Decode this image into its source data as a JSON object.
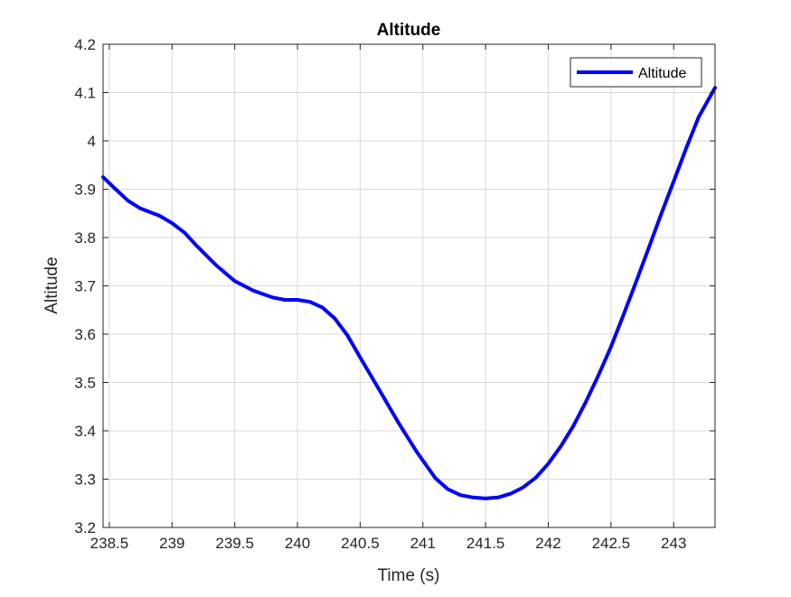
{
  "chart_data": {
    "type": "line",
    "title": "Altitude",
    "xlabel": "Time (s)",
    "ylabel": "Altitude",
    "xlim": [
      238.45,
      243.33
    ],
    "ylim": [
      3.2,
      4.2
    ],
    "xticks": [
      238.5,
      239,
      239.5,
      240,
      240.5,
      241,
      241.5,
      242,
      242.5,
      243
    ],
    "xtick_labels": [
      "238.5",
      "239",
      "239.5",
      "240",
      "240.5",
      "241",
      "241.5",
      "242",
      "242.5",
      "243"
    ],
    "yticks": [
      3.2,
      3.3,
      3.4,
      3.5,
      3.6,
      3.7,
      3.8,
      3.9,
      4.0,
      4.1,
      4.2
    ],
    "ytick_labels": [
      "3.2",
      "3.3",
      "3.4",
      "3.5",
      "3.6",
      "3.7",
      "3.8",
      "3.9",
      "4",
      "4.1",
      "4.2"
    ],
    "grid": true,
    "legend_position": "top-right",
    "series": [
      {
        "name": "Altitude",
        "color": "#0000ff",
        "x": [
          238.45,
          238.55,
          238.65,
          238.75,
          238.9,
          239.0,
          239.1,
          239.2,
          239.35,
          239.5,
          239.65,
          239.8,
          239.9,
          240.0,
          240.1,
          240.2,
          240.3,
          240.4,
          240.5,
          240.65,
          240.8,
          240.95,
          241.1,
          241.2,
          241.3,
          241.4,
          241.5,
          241.6,
          241.7,
          241.8,
          241.9,
          242.0,
          242.1,
          242.2,
          242.3,
          242.4,
          242.5,
          242.6,
          242.7,
          242.8,
          242.9,
          243.0,
          243.1,
          243.2,
          243.33
        ],
        "y": [
          3.925,
          3.9,
          3.876,
          3.86,
          3.845,
          3.83,
          3.81,
          3.782,
          3.743,
          3.71,
          3.69,
          3.676,
          3.671,
          3.671,
          3.667,
          3.655,
          3.632,
          3.597,
          3.552,
          3.486,
          3.419,
          3.357,
          3.302,
          3.279,
          3.267,
          3.262,
          3.26,
          3.262,
          3.27,
          3.283,
          3.303,
          3.332,
          3.368,
          3.41,
          3.46,
          3.515,
          3.574,
          3.64,
          3.708,
          3.778,
          3.848,
          3.916,
          3.985,
          4.05,
          4.11
        ]
      }
    ]
  }
}
